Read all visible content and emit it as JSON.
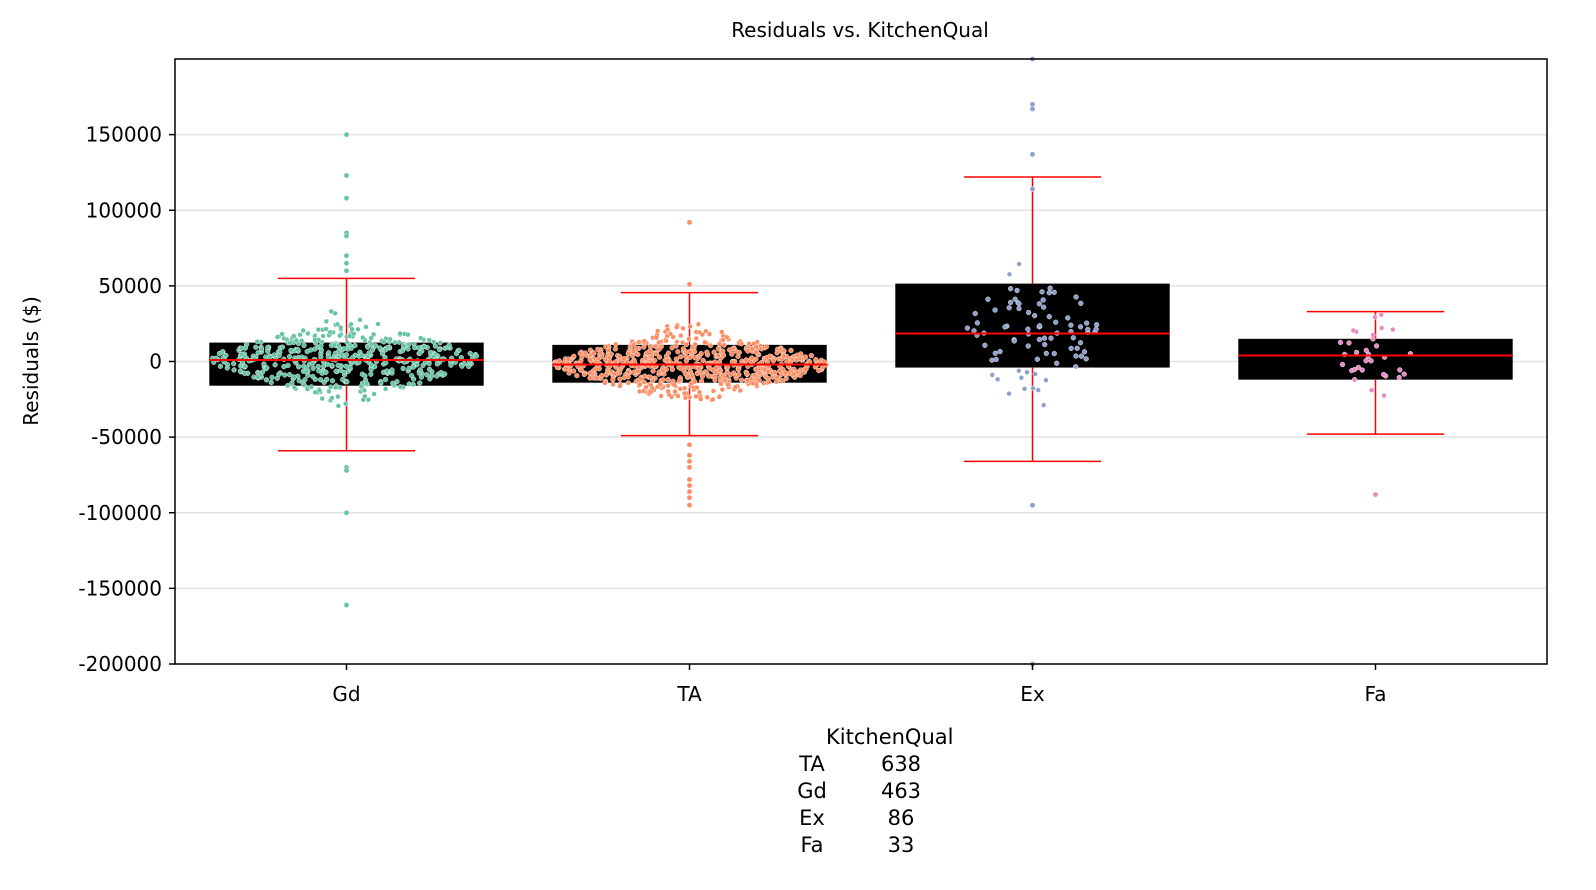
{
  "chart_data": {
    "type": "box+swarm",
    "title": "Residuals vs. KitchenQual",
    "xlabel": "",
    "ylabel": "Residuals ($)",
    "ylim": [
      -200000,
      200000
    ],
    "yticks": [
      150000,
      100000,
      50000,
      0,
      -50000,
      -100000,
      -150000,
      -200000
    ],
    "ytick_labels": [
      "150000",
      "100000",
      "50000",
      "0",
      "-50000",
      "-100000",
      "-150000",
      "-200000"
    ],
    "grid": "horizontal",
    "categories": [
      "Gd",
      "TA",
      "Ex",
      "Fa"
    ],
    "colors": {
      "Gd": "#66c2a5",
      "TA": "#fc8d62",
      "Ex": "#8da0cb",
      "Fa": "#e78ac3",
      "box_fill": "#000000",
      "median_whisker": "#ff0000"
    },
    "boxes": [
      {
        "category": "Gd",
        "q1": -16000,
        "median": 1000,
        "q3": 12500,
        "whisker_low": -59000,
        "whisker_high": 55000
      },
      {
        "category": "TA",
        "q1": -14000,
        "median": -2000,
        "q3": 11000,
        "whisker_low": -49000,
        "whisker_high": 45500
      },
      {
        "category": "Ex",
        "q1": -4000,
        "median": 18500,
        "q3": 51500,
        "whisker_low": -66000,
        "whisker_high": 122000
      },
      {
        "category": "Fa",
        "q1": -12000,
        "median": 4000,
        "q3": 15000,
        "whisker_low": -48000,
        "whisker_high": 33000
      }
    ],
    "outliers": [
      {
        "category": "Gd",
        "values": [
          150000,
          123000,
          108000,
          85000,
          83000,
          70000,
          65000,
          60000,
          -70000,
          -72000,
          -100000,
          -161000
        ]
      },
      {
        "category": "TA",
        "values": [
          92000,
          51000,
          -55000,
          -62000,
          -66000,
          -70000,
          -78000,
          -82000,
          -86000,
          -90000,
          -95000
        ]
      },
      {
        "category": "Ex",
        "values": [
          200000,
          170000,
          167000,
          137000,
          114000,
          -95000,
          -200000
        ]
      },
      {
        "category": "Fa",
        "values": [
          -88000
        ]
      }
    ],
    "swarm_counts": [
      463,
      638,
      86,
      33
    ],
    "count_table": {
      "header": "KitchenQual",
      "rows": [
        {
          "category": "TA",
          "count": "638"
        },
        {
          "category": "Gd",
          "count": "463"
        },
        {
          "category": "Ex",
          "count": "86"
        },
        {
          "category": "Fa",
          "count": "33"
        }
      ]
    }
  }
}
